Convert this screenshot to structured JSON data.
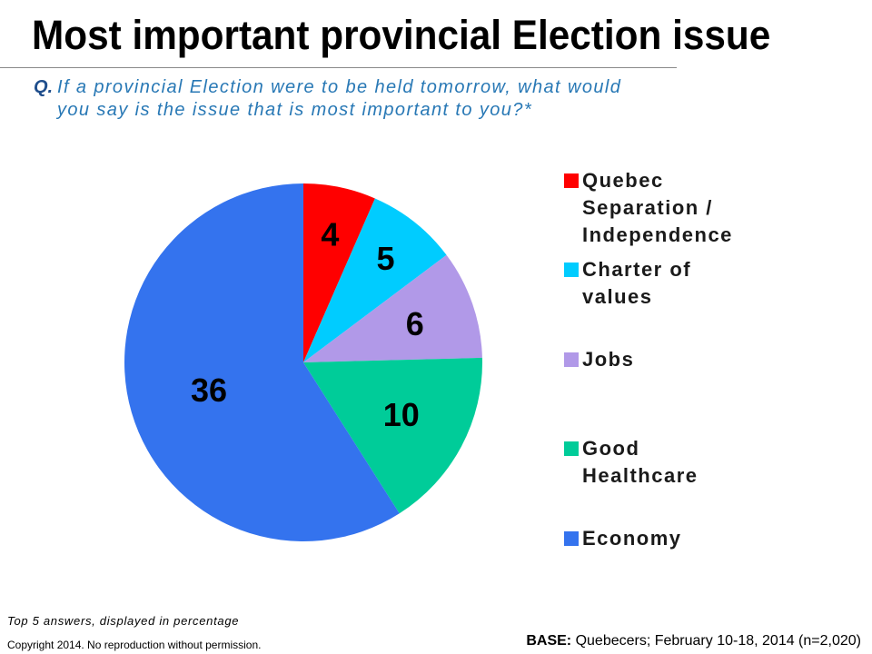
{
  "slide": {
    "question_marker": "Q.",
    "question_lines": [
      "If a provincial Election were to be held tomorrow, what would",
      "you say is the issue that is most important to you?*"
    ]
  },
  "chart_data": {
    "type": "pie",
    "title": "Most important provincial Election issue",
    "categories": [
      "Quebec Separation / Independence",
      "Charter of values",
      "Jobs",
      "Good Healthcare",
      "Economy"
    ],
    "values": [
      4,
      5,
      6,
      10,
      36
    ],
    "colors": [
      "#FF0000",
      "#00CCFF",
      "#B199E8",
      "#00CC99",
      "#3473EE"
    ],
    "legend_position": "right"
  },
  "footer": {
    "note": "Top 5 answers, displayed in percentage",
    "copyright": "Copyright 2014. No reproduction without permission.",
    "base_label": "BASE:",
    "base_text": "Quebecers; February 10-18, 2014 (n=2,020)"
  }
}
